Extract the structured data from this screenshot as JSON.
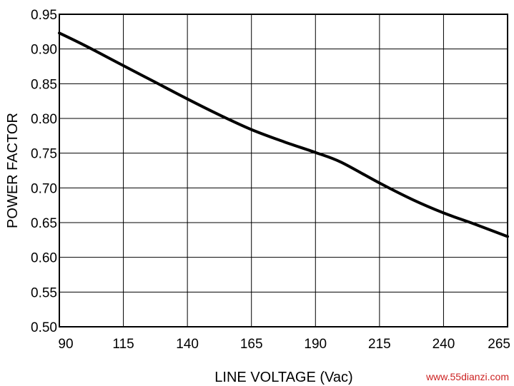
{
  "chart_data": {
    "type": "line",
    "title": "",
    "xlabel": "LINE VOLTAGE (Vac)",
    "ylabel": "POWER FACTOR",
    "xlim": [
      90,
      265
    ],
    "ylim": [
      0.5,
      0.95
    ],
    "x_ticks": [
      90,
      115,
      140,
      165,
      190,
      215,
      240,
      265
    ],
    "x_tick_labels": [
      "90",
      "115",
      "140",
      "165",
      "190",
      "215",
      "240",
      "265"
    ],
    "y_ticks": [
      0.5,
      0.55,
      0.6,
      0.65,
      0.7,
      0.75,
      0.8,
      0.85,
      0.9,
      0.95
    ],
    "y_tick_labels": [
      "0.50",
      "0.55",
      "0.60",
      "0.65",
      "0.70",
      "0.75",
      "0.80",
      "0.85",
      "0.90",
      "0.95"
    ],
    "grid": true,
    "series": [
      {
        "color": "#000000",
        "points": [
          [
            90,
            0.923
          ],
          [
            100,
            0.905
          ],
          [
            115,
            0.876
          ],
          [
            127,
            0.853
          ],
          [
            140,
            0.828
          ],
          [
            152,
            0.806
          ],
          [
            165,
            0.784
          ],
          [
            178,
            0.766
          ],
          [
            190,
            0.751
          ],
          [
            200,
            0.737
          ],
          [
            215,
            0.707
          ],
          [
            228,
            0.683
          ],
          [
            240,
            0.664
          ],
          [
            252,
            0.648
          ],
          [
            265,
            0.63
          ]
        ]
      }
    ]
  },
  "watermark": "www.55dianzi.com"
}
